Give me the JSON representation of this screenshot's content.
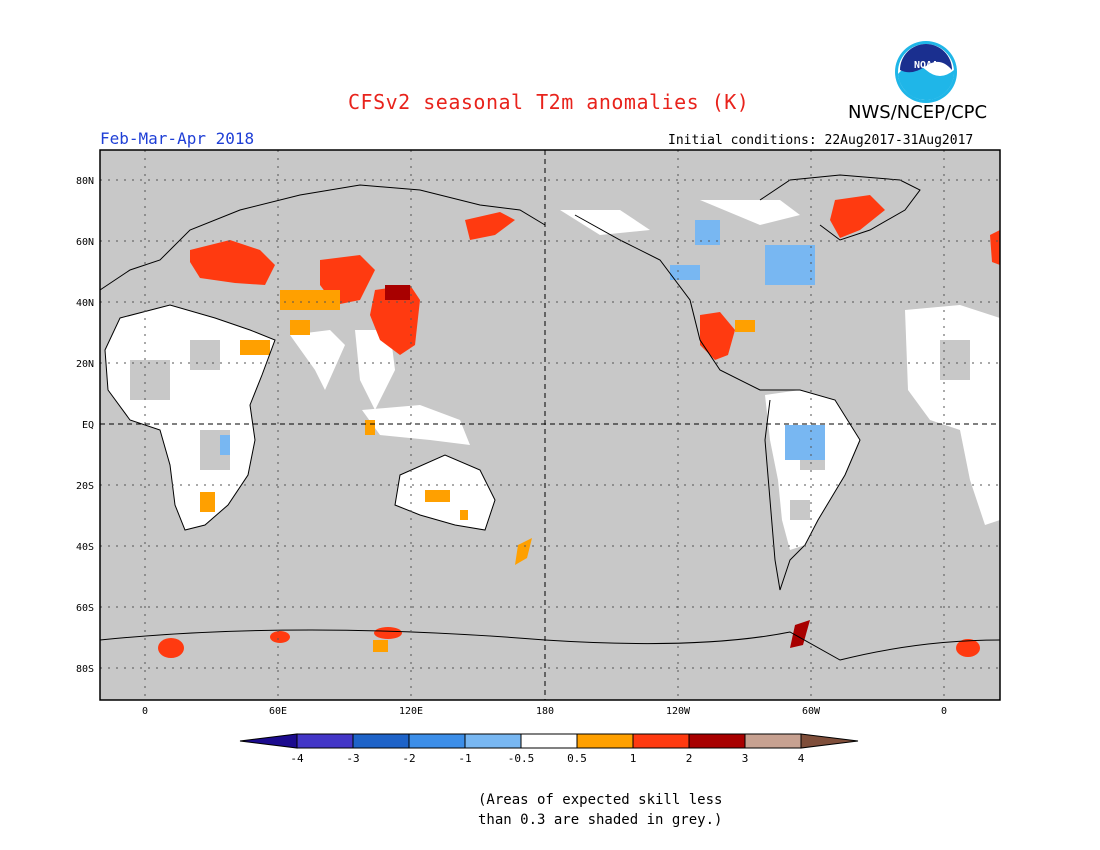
{
  "header": {
    "title": "CFSv2 seasonal T2m anomalies (K)",
    "agency": "NWS/NCEP/CPC",
    "logo_text": "NOAA",
    "period": "Feb-Mar-Apr 2018",
    "initial_conditions": "Initial conditions: 22Aug2017-31Aug2017"
  },
  "map": {
    "lat_labels": [
      "80N",
      "60N",
      "40N",
      "20N",
      "EQ",
      "20S",
      "40S",
      "60S",
      "80S"
    ],
    "lon_labels": [
      "0",
      "60E",
      "120E",
      "180",
      "120W",
      "60W",
      "0"
    ],
    "colors": {
      "background": "#c8c8c8",
      "land": "#ffffff",
      "grey_skill": "#c8c8c8"
    }
  },
  "legend": {
    "ticks": [
      "-4",
      "-3",
      "-2",
      "-1",
      "-0.5",
      "0.5",
      "1",
      "2",
      "3",
      "4"
    ],
    "colors": [
      "#1c0b8e",
      "#4336c7",
      "#1e63c8",
      "#3c8ee8",
      "#78b7f2",
      "#ffffff",
      "#ffa000",
      "#ff3a10",
      "#a80000",
      "#c7a191",
      "#7f4e3a"
    ]
  },
  "footnote": {
    "line1": "(Areas of expected skill less",
    "line2": "than 0.3 are shaded in grey.)"
  }
}
